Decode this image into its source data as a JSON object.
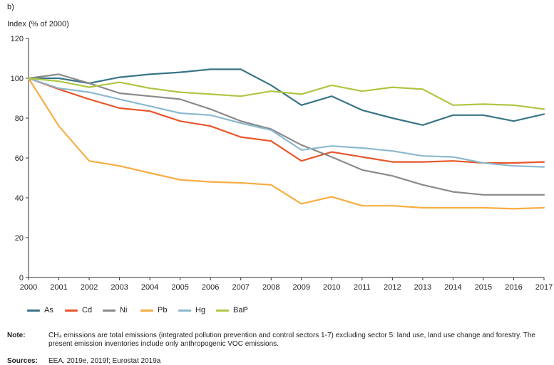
{
  "panel_label": "b)",
  "chart_data": {
    "type": "line",
    "ylabel": "Index (% of 2000)",
    "xlabel": "",
    "ylim": [
      0,
      120
    ],
    "yticks": [
      0,
      20,
      40,
      60,
      80,
      100,
      120
    ],
    "x": [
      "2000",
      "2001",
      "2002",
      "2003",
      "2004",
      "2005",
      "2006",
      "2007",
      "2008",
      "2009",
      "2010",
      "2011",
      "2012",
      "2013",
      "2014",
      "2015",
      "2016",
      "2017"
    ],
    "grid": false,
    "legend_position": "bottom",
    "series": [
      {
        "name": "As",
        "color": "#3a7487",
        "values": [
          100,
          100,
          97.5,
          100.5,
          102,
          103,
          104.5,
          104.5,
          96.5,
          86.5,
          91,
          84,
          80,
          76.5,
          81.5,
          81.5,
          78.5,
          82
        ]
      },
      {
        "name": "Cd",
        "color": "#e8562a",
        "values": [
          100,
          94.5,
          89.5,
          85,
          83.5,
          78.5,
          76,
          70.5,
          68.5,
          58.5,
          63,
          60.5,
          58,
          58,
          58.5,
          57.5,
          57.5,
          58
        ]
      },
      {
        "name": "Ni",
        "color": "#8a8a8a",
        "values": [
          100,
          102,
          97.5,
          92.5,
          91,
          89.5,
          84.5,
          78.5,
          74.5,
          66.5,
          60.5,
          54,
          51,
          46.5,
          43,
          41.5,
          41.5,
          41.5
        ]
      },
      {
        "name": "Pb",
        "color": "#f7ad42",
        "values": [
          100,
          76,
          58.5,
          56,
          52.5,
          49,
          48,
          47.5,
          46.5,
          37,
          40.5,
          36,
          36,
          35,
          35,
          35,
          34.5,
          35
        ]
      },
      {
        "name": "Hg",
        "color": "#8cb9cf",
        "values": [
          100,
          95,
          93,
          89.5,
          86,
          82.5,
          81.5,
          77.5,
          74,
          64,
          66,
          65,
          63.5,
          61,
          60.5,
          57.5,
          56,
          55.5
        ]
      },
      {
        "name": "BaP",
        "color": "#adc742",
        "values": [
          100,
          98.5,
          95.5,
          98,
          95,
          93,
          92,
          91,
          93.5,
          92,
          96.5,
          93.5,
          95.5,
          94.5,
          86.5,
          87,
          86.5,
          84.5
        ]
      }
    ]
  },
  "note": {
    "label": "Note:",
    "text": "CH₄ emissions are total emissions (integrated pollution prevention and control sectors 1-7) excluding sector 5: land use, land use change and forestry. The present emission inventories include only anthropogenic VOC emissions."
  },
  "sources": {
    "label": "Sources:",
    "text": "EEA, 2019e, 2019f; Eurostat 2019a"
  }
}
